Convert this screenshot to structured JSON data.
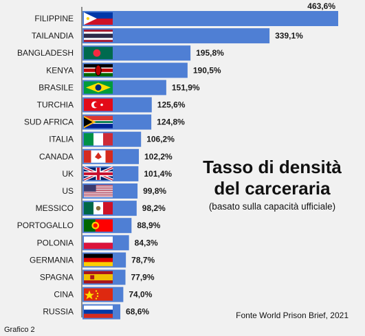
{
  "chart_data": {
    "type": "bar",
    "orientation": "horizontal",
    "title": "Tasso di densità del carceraria",
    "subtitle": "(basato sulla capacità ufficiale)",
    "source": "Fonte World Prison Brief, 2021",
    "figure_label": "Grafico 2",
    "categories": [
      "FILIPPINE",
      "TAILANDIA",
      "BANGLADESH",
      "KENYA",
      "BRASILE",
      "TURCHIA",
      "SUD AFRICA",
      "ITALIA",
      "CANADA",
      "UK",
      "US",
      "MESSICO",
      "PORTOGALLO",
      "POLONIA",
      "GERMANIA",
      "SPAGNA",
      "CINA",
      "RUSSIA"
    ],
    "values": [
      463.6,
      339.1,
      195.8,
      190.5,
      151.9,
      125.6,
      124.8,
      106.2,
      102.2,
      101.4,
      99.8,
      98.2,
      88.9,
      84.3,
      78.7,
      77.9,
      74.0,
      68.6
    ],
    "value_labels": [
      "463,6%",
      "339,1%",
      "195,8%",
      "190,5%",
      "151,9%",
      "125,6%",
      "124,8%",
      "106,2%",
      "102,2%",
      "101,4%",
      "99,8%",
      "98,2%",
      "88,9%",
      "84,3%",
      "78,7%",
      "77,9%",
      "74,0%",
      "68,6%"
    ],
    "flag_icons": [
      "flag-philippines-icon",
      "flag-thailand-icon",
      "flag-bangladesh-icon",
      "flag-kenya-icon",
      "flag-brazil-icon",
      "flag-turkey-icon",
      "flag-south-africa-icon",
      "flag-italy-icon",
      "flag-canada-icon",
      "flag-uk-icon",
      "flag-us-icon",
      "flag-mexico-icon",
      "flag-portugal-icon",
      "flag-poland-icon",
      "flag-germany-icon",
      "flag-spain-icon",
      "flag-china-icon",
      "flag-russia-icon"
    ],
    "xlim": [
      0,
      463.6
    ],
    "grid": false,
    "bar_color": "#4f7fd4"
  }
}
